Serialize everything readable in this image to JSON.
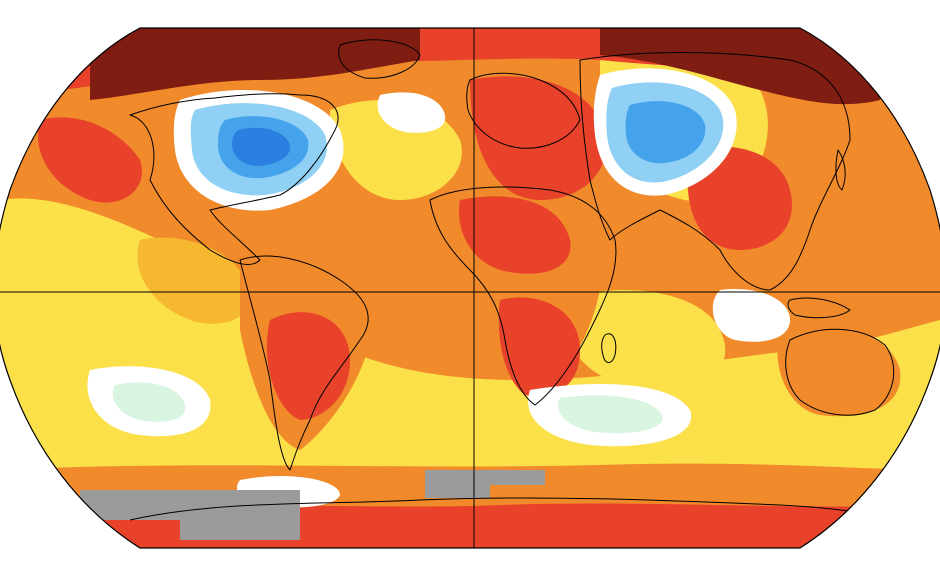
{
  "map": {
    "projection": "robinson-like",
    "type": "global surface temperature anomaly",
    "colors": {
      "dark_red": "#7f1d12",
      "red": "#e8432a",
      "red_orange": "#f05a2a",
      "orange": "#f08a2a",
      "yellow_orange": "#f5b82e",
      "yellow": "#fbe04a",
      "white": "#ffffff",
      "pale_green": "#d9f5e1",
      "light_blue": "#8fd0f4",
      "blue": "#45a3ec",
      "deep_blue": "#2a7fe0",
      "gray": "#9b9b9b",
      "coast": "#000000"
    },
    "grid_lines": [
      "equator",
      "prime-meridian"
    ]
  }
}
